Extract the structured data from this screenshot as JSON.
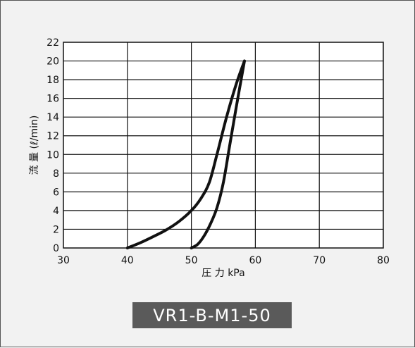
{
  "chart_data": {
    "type": "line",
    "xlabel": "圧 力 kPa",
    "ylabel": "流 量 (ℓ/min)",
    "xlim": [
      30,
      80
    ],
    "ylim": [
      0,
      22
    ],
    "xticks": [
      30,
      40,
      50,
      60,
      70,
      80
    ],
    "yticks": [
      0,
      2,
      4,
      6,
      8,
      10,
      12,
      14,
      16,
      18,
      20,
      22
    ],
    "grid": true,
    "series": [
      {
        "values": [
          {
            "x": 40,
            "y": 0
          },
          {
            "x": 42,
            "y": 0.55
          },
          {
            "x": 44,
            "y": 1.2
          },
          {
            "x": 46,
            "y": 1.9
          },
          {
            "x": 48,
            "y": 2.8
          },
          {
            "x": 50,
            "y": 4
          },
          {
            "x": 51.5,
            "y": 5.3
          },
          {
            "x": 52.8,
            "y": 7
          },
          {
            "x": 54,
            "y": 10
          },
          {
            "x": 55.5,
            "y": 14
          },
          {
            "x": 57,
            "y": 17.5
          },
          {
            "x": 58.3,
            "y": 20
          }
        ]
      },
      {
        "values": [
          {
            "x": 50,
            "y": 0
          },
          {
            "x": 51,
            "y": 0.4
          },
          {
            "x": 52,
            "y": 1.3
          },
          {
            "x": 53,
            "y": 2.6
          },
          {
            "x": 54,
            "y": 4.3
          },
          {
            "x": 55,
            "y": 7
          },
          {
            "x": 56,
            "y": 11
          },
          {
            "x": 57,
            "y": 15
          },
          {
            "x": 58.3,
            "y": 20
          }
        ]
      }
    ]
  },
  "badge": {
    "text": "VR1-B-M1-50"
  },
  "colors": {
    "line": "#111111",
    "grid": "#111111",
    "badge_bg": "#5a5a5a",
    "panel_bg": "#f2f2f2"
  }
}
